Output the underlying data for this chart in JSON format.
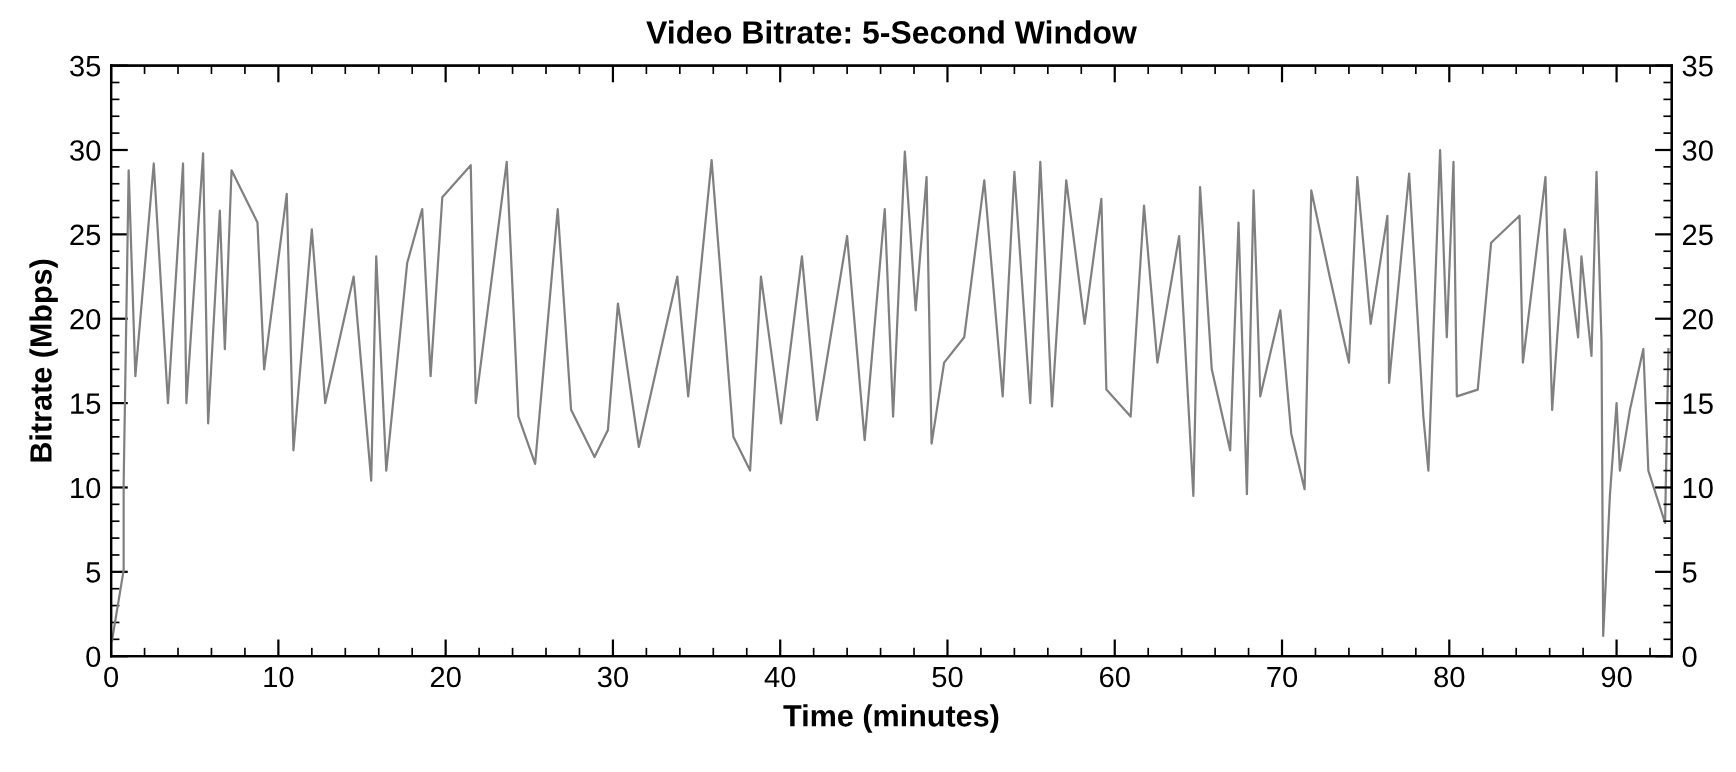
{
  "chart_data": {
    "type": "line",
    "title": "Video Bitrate: 5-Second Window",
    "xlabel": "Time (minutes)",
    "ylabel": "Bitrate (Mbps)",
    "xlim": [
      0,
      93.3
    ],
    "xticks": [
      0,
      10,
      20,
      30,
      40,
      50,
      60,
      70,
      80,
      90
    ],
    "ylim": [
      0,
      35
    ],
    "yticks": [
      0,
      5,
      10,
      15,
      20,
      25,
      30,
      35
    ],
    "y2lim": [
      0,
      35
    ],
    "y2ticks": [
      0,
      5,
      10,
      15,
      20,
      25,
      30,
      35
    ],
    "grid": false,
    "legend": false,
    "marker": "none",
    "line_style": "solid",
    "series": [
      {
        "color": "#808080",
        "x": [
          0.05,
          0.75,
          0.75,
          1.05,
          1.45,
          2.55,
          3.4,
          4.3,
          4.5,
          5.5,
          5.8,
          6.5,
          6.8,
          7.2,
          8.75,
          9.15,
          10.5,
          10.9,
          12.0,
          12.8,
          14.5,
          15.55,
          15.85,
          16.45,
          17.7,
          18.6,
          19.1,
          19.8,
          21.5,
          21.8,
          23.65,
          24.35,
          25.35,
          26.7,
          27.5,
          28.9,
          29.7,
          30.3,
          31.55,
          33.85,
          34.5,
          35.9,
          37.2,
          38.2,
          38.85,
          40.05,
          41.3,
          42.2,
          44.0,
          45.05,
          46.25,
          46.75,
          47.45,
          48.1,
          48.75,
          49.05,
          49.8,
          51.0,
          52.2,
          53.3,
          54.0,
          54.95,
          55.55,
          56.25,
          57.1,
          58.2,
          59.2,
          59.5,
          60.95,
          61.75,
          62.55,
          63.85,
          64.7,
          65.1,
          65.8,
          66.9,
          67.4,
          67.9,
          68.3,
          68.7,
          69.9,
          70.55,
          71.35,
          71.75,
          72.85,
          74.0,
          74.5,
          75.3,
          76.3,
          76.4,
          77.6,
          78.45,
          78.75,
          79.45,
          79.85,
          80.25,
          80.45,
          81.7,
          82.5,
          84.2,
          84.4,
          85.75,
          86.15,
          86.9,
          87.7,
          87.9,
          88.5,
          88.8,
          89.1,
          89.2,
          89.6,
          90.0,
          90.2,
          90.8,
          91.6,
          91.9,
          92.9,
          93.1
        ],
        "values": [
          0.9,
          5.1,
          10.2,
          28.8,
          16.6,
          29.2,
          15.0,
          29.2,
          15.0,
          29.8,
          13.8,
          26.4,
          18.2,
          28.8,
          25.7,
          17.0,
          27.4,
          12.2,
          25.3,
          15.0,
          22.5,
          10.4,
          23.7,
          11.0,
          23.3,
          26.5,
          16.6,
          27.2,
          29.1,
          15.0,
          29.3,
          14.2,
          11.4,
          26.5,
          14.6,
          11.8,
          13.4,
          20.9,
          12.4,
          22.5,
          15.4,
          29.4,
          13.0,
          11.0,
          22.5,
          13.8,
          23.7,
          14.0,
          24.9,
          12.8,
          26.5,
          14.2,
          29.9,
          20.5,
          28.4,
          12.6,
          17.4,
          18.9,
          28.2,
          15.4,
          28.7,
          15.0,
          29.3,
          14.8,
          28.2,
          19.7,
          27.1,
          15.8,
          14.2,
          26.7,
          17.4,
          24.9,
          9.5,
          27.8,
          17.0,
          12.2,
          25.7,
          9.6,
          27.6,
          15.4,
          20.5,
          13.2,
          9.9,
          27.6,
          22.5,
          17.4,
          28.4,
          19.7,
          26.1,
          16.2,
          28.6,
          14.2,
          11.0,
          30.0,
          18.9,
          29.3,
          15.4,
          15.8,
          24.5,
          26.1,
          17.4,
          28.4,
          14.6,
          25.3,
          18.9,
          23.7,
          17.8,
          28.7,
          18.6,
          1.2,
          9.5,
          15.0,
          11.0,
          14.6,
          18.2,
          11.0,
          7.9,
          18.2
        ]
      }
    ]
  }
}
